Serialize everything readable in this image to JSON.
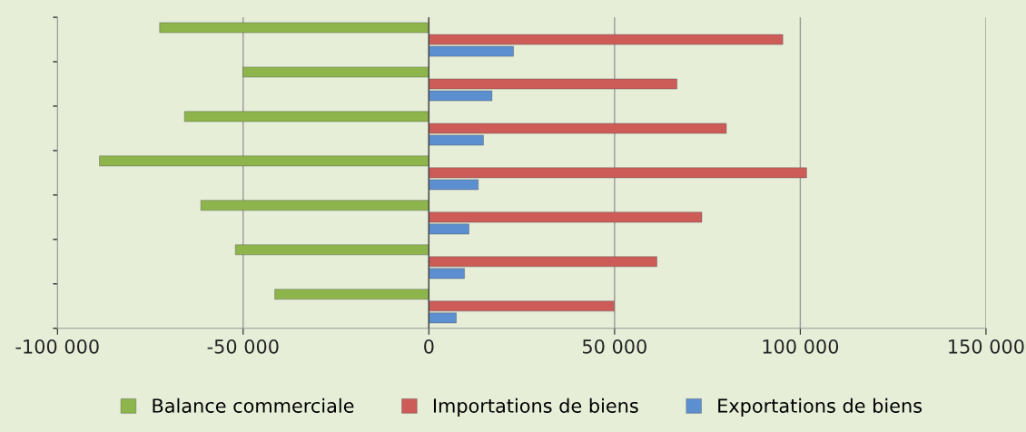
{
  "chart_data": {
    "type": "bar",
    "orientation": "horizontal",
    "categories": [
      null,
      null,
      null,
      null,
      null,
      null,
      null
    ],
    "series": [
      {
        "name": "Balance commerciale",
        "color": "#8db54b",
        "values": [
          -72500,
          -50100,
          -65800,
          -88700,
          -61400,
          -52100,
          -41500
        ]
      },
      {
        "name": "Importations de biens",
        "color": "#cd5b57",
        "values": [
          95300,
          66800,
          80100,
          101700,
          73500,
          61400,
          49900
        ]
      },
      {
        "name": "Exportations de biens",
        "color": "#5b8fd0",
        "values": [
          22800,
          17000,
          14700,
          13300,
          10800,
          9600,
          7400
        ]
      }
    ],
    "xlim": [
      -100000,
      150000
    ],
    "xticks": [
      {
        "value": -100000,
        "label": "-100 000"
      },
      {
        "value": -50000,
        "label": "-50 000"
      },
      {
        "value": 0,
        "label": "0"
      },
      {
        "value": 50000,
        "label": "50 000"
      },
      {
        "value": 100000,
        "label": "100 000"
      },
      {
        "value": 150000,
        "label": "150 000"
      }
    ],
    "grid": "x",
    "legend": "bottom",
    "tick_labels": "x"
  }
}
